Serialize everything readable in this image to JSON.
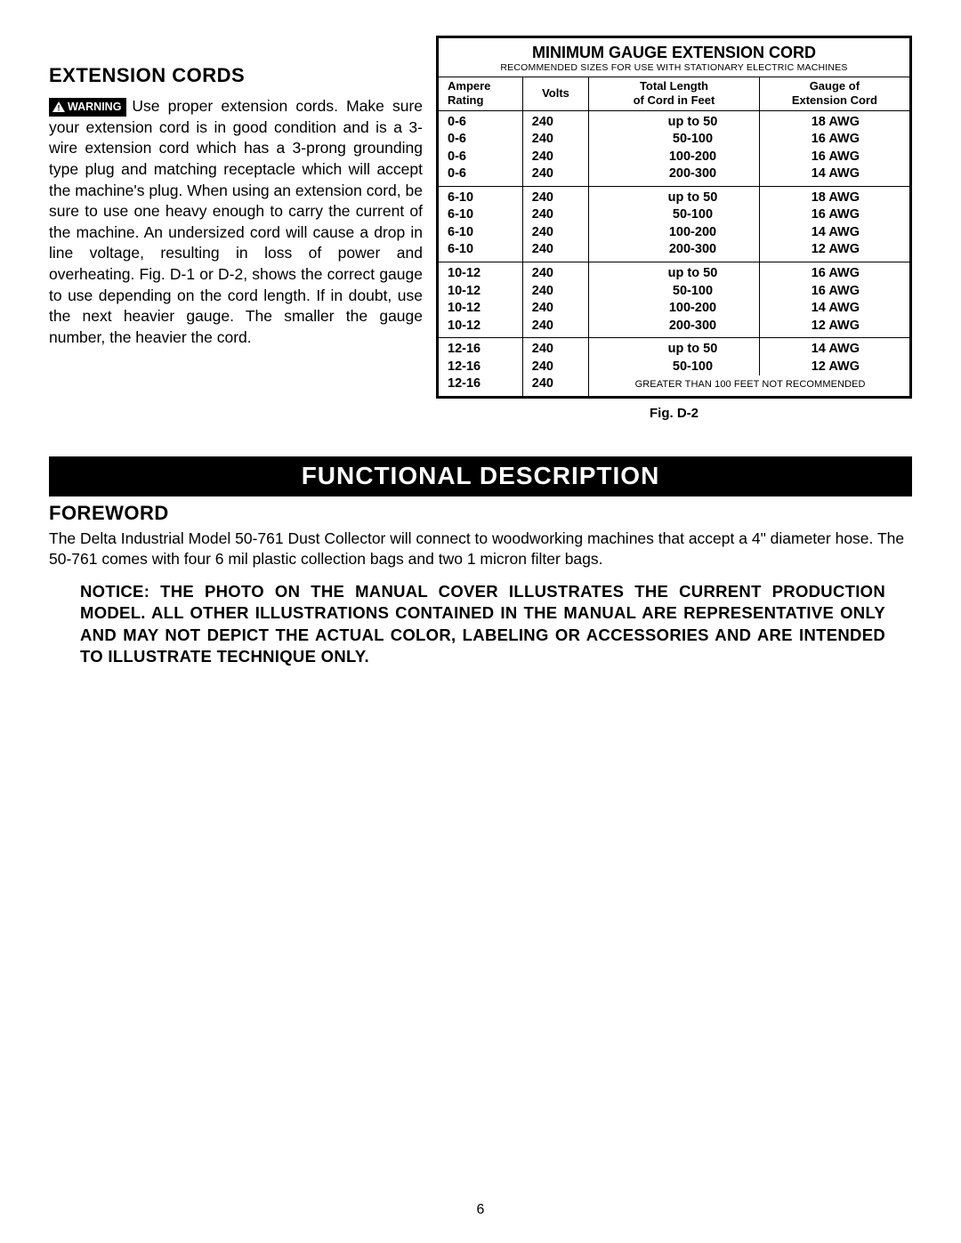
{
  "extension": {
    "heading": "EXTENSION CORDS",
    "warning_label": "WARNING",
    "body": "Use proper extension cords. Make sure your extension cord is in good condition and is a 3-wire extension cord which has a 3-prong grounding type plug and matching receptacle which will accept the machine's plug. When using an extension cord, be sure to use one heavy enough to carry the current of the machine. An undersized cord will cause a drop in line voltage, resulting in loss of power and overheating. Fig. D-1 or D-2, shows the correct gauge to use depending on the cord length. If in doubt, use the next heavier gauge. The smaller the gauge number, the heavier the cord."
  },
  "table": {
    "title": "MINIMUM GAUGE EXTENSION CORD",
    "subtitle": "RECOMMENDED SIZES FOR USE WITH STATIONARY ELECTRIC MACHINES",
    "headers": {
      "ampere1": "Ampere",
      "ampere2": "Rating",
      "volts": "Volts",
      "length1": "Total Length",
      "length2": "of Cord in Feet",
      "gauge1": "Gauge of",
      "gauge2": "Extension Cord"
    },
    "groups": [
      {
        "rows": [
          {
            "a": "0-6",
            "v": "240",
            "l": "up to 50",
            "g": "18 AWG"
          },
          {
            "a": "0-6",
            "v": "240",
            "l": "50-100",
            "g": "16 AWG"
          },
          {
            "a": "0-6",
            "v": "240",
            "l": "100-200",
            "g": "16 AWG"
          },
          {
            "a": "0-6",
            "v": "240",
            "l": "200-300",
            "g": "14 AWG"
          }
        ]
      },
      {
        "rows": [
          {
            "a": "6-10",
            "v": "240",
            "l": "up to 50",
            "g": "18 AWG"
          },
          {
            "a": "6-10",
            "v": "240",
            "l": "50-100",
            "g": "16 AWG"
          },
          {
            "a": "6-10",
            "v": "240",
            "l": "100-200",
            "g": "14 AWG"
          },
          {
            "a": "6-10",
            "v": "240",
            "l": "200-300",
            "g": "12 AWG"
          }
        ]
      },
      {
        "rows": [
          {
            "a": "10-12",
            "v": "240",
            "l": "up to 50",
            "g": "16 AWG"
          },
          {
            "a": "10-12",
            "v": "240",
            "l": "50-100",
            "g": "16 AWG"
          },
          {
            "a": "10-12",
            "v": "240",
            "l": "100-200",
            "g": "14 AWG"
          },
          {
            "a": "10-12",
            "v": "240",
            "l": "200-300",
            "g": "12 AWG"
          }
        ]
      },
      {
        "rows": [
          {
            "a": "12-16",
            "v": "240",
            "l": "up to 50",
            "g": "14 AWG"
          },
          {
            "a": "12-16",
            "v": "240",
            "l": "50-100",
            "g": "12 AWG"
          },
          {
            "a": "12-16",
            "v": "240",
            "note": "GREATER THAN 100 FEET NOT RECOMMENDED"
          }
        ]
      }
    ],
    "caption": "Fig. D-2"
  },
  "banner": "FUNCTIONAL DESCRIPTION",
  "foreword": {
    "heading": "FOREWORD",
    "text": "The Delta Industrial Model 50-761 Dust Collector will connect to woodworking machines that accept a 4\" diameter hose. The 50-761 comes with four 6 mil plastic collection bags and two 1 micron filter bags."
  },
  "notice": "NOTICE: THE PHOTO ON THE MANUAL COVER ILLUSTRATES THE CURRENT PRODUCTION MODEL.  ALL OTHER ILLUSTRATIONS CONTAINED IN THE MANUAL ARE REPRESENTATIVE ONLY AND MAY NOT DEPICT THE ACTUAL COLOR, LABELING OR ACCESSORIES AND ARE INTENDED TO ILLUSTRATE TECHNIQUE ONLY.",
  "page_number": "6"
}
